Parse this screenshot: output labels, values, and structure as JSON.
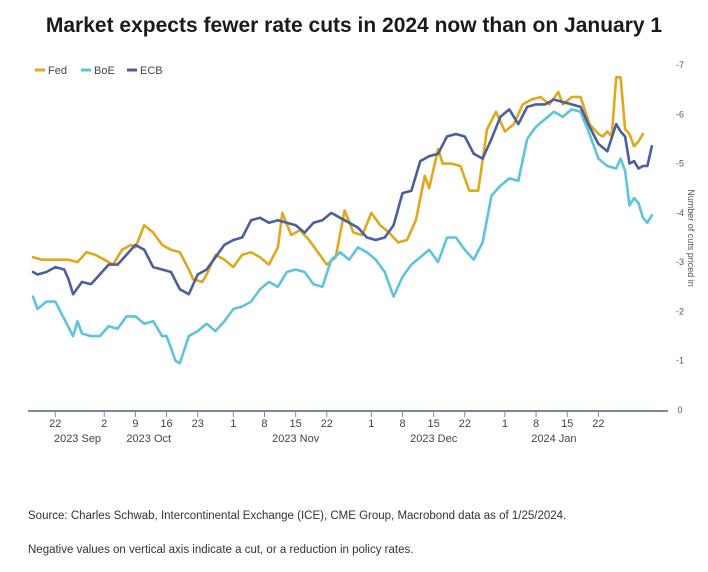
{
  "title": "Market expects fewer rate cuts in 2024 now than on January 1",
  "source_note": "Source: Charles Schwab, Intercontinental Exchange (ICE), CME Group, Macrobond data as of 1/25/2024.",
  "footnote": "Negative values on vertical axis indicate a cut, or a reduction in policy rates.",
  "chart_data": {
    "type": "line",
    "xlabel": "",
    "ylabel": "Number of cuts priced in",
    "ylim": [
      0,
      -7
    ],
    "yticks": [
      0,
      -1,
      -2,
      -3,
      -4,
      -5,
      -6,
      -7
    ],
    "ytick_labels": [
      "0",
      "-1",
      "-2",
      "-3",
      "-4",
      "-5",
      "-6",
      "-7"
    ],
    "grid": false,
    "legend": "top-left",
    "x_day_ticks": [
      "22",
      "2",
      "9",
      "16",
      "23",
      "1",
      "8",
      "15",
      "22",
      "1",
      "8",
      "15",
      "22",
      "1",
      "8",
      "15",
      "22"
    ],
    "x_month_labels": [
      "2023 Sep",
      "2023 Oct",
      "2023 Nov",
      "2023 Dec",
      "2024 Jan"
    ],
    "x_ticks_iso": [
      "2023-08-22",
      "2023-09-02",
      "2023-09-09",
      "2023-09-16",
      "2023-09-23",
      "2023-10-01",
      "2023-10-08",
      "2023-10-15",
      "2023-10-22",
      "2023-11-01",
      "2023-11-08",
      "2023-11-15",
      "2023-11-22",
      "2023-12-01",
      "2023-12-08",
      "2023-12-15",
      "2023-12-22"
    ],
    "x_month_label_dates": [
      "2023-08-27",
      "2023-09-12",
      "2023-10-15",
      "2023-11-15",
      "2023-12-12"
    ],
    "x_range": [
      "2023-08-17",
      "2023-12-30"
    ],
    "series": [
      {
        "name": "Fed",
        "color": "#e0a81c",
        "points": [
          [
            "2023-08-17",
            -3.1
          ],
          [
            "2023-08-19",
            -3.05
          ],
          [
            "2023-08-22",
            -3.05
          ],
          [
            "2023-08-25",
            -3.05
          ],
          [
            "2023-08-27",
            -3.0
          ],
          [
            "2023-08-29",
            -3.2
          ],
          [
            "2023-08-31",
            -3.15
          ],
          [
            "2023-09-02",
            -3.05
          ],
          [
            "2023-09-04",
            -2.95
          ],
          [
            "2023-09-06",
            -3.25
          ],
          [
            "2023-09-08",
            -3.35
          ],
          [
            "2023-09-09",
            -3.3
          ],
          [
            "2023-09-11",
            -3.75
          ],
          [
            "2023-09-13",
            -3.6
          ],
          [
            "2023-09-15",
            -3.35
          ],
          [
            "2023-09-17",
            -3.25
          ],
          [
            "2023-09-19",
            -3.2
          ],
          [
            "2023-09-21",
            -2.85
          ],
          [
            "2023-09-22",
            -2.65
          ],
          [
            "2023-09-24",
            -2.6
          ],
          [
            "2023-09-25",
            -2.75
          ],
          [
            "2023-09-27",
            -3.15
          ],
          [
            "2023-09-29",
            -3.05
          ],
          [
            "2023-10-01",
            -2.9
          ],
          [
            "2023-10-03",
            -3.15
          ],
          [
            "2023-10-05",
            -3.2
          ],
          [
            "2023-10-07",
            -3.1
          ],
          [
            "2023-10-09",
            -2.95
          ],
          [
            "2023-10-11",
            -3.3
          ],
          [
            "2023-10-12",
            -4.0
          ],
          [
            "2023-10-14",
            -3.55
          ],
          [
            "2023-10-16",
            -3.65
          ],
          [
            "2023-10-18",
            -3.45
          ],
          [
            "2023-10-20",
            -3.2
          ],
          [
            "2023-10-22",
            -2.95
          ],
          [
            "2023-10-24",
            -3.1
          ],
          [
            "2023-10-26",
            -4.05
          ],
          [
            "2023-10-28",
            -3.6
          ],
          [
            "2023-10-30",
            -3.55
          ],
          [
            "2023-11-01",
            -4.0
          ],
          [
            "2023-11-03",
            -3.75
          ],
          [
            "2023-11-05",
            -3.6
          ],
          [
            "2023-11-07",
            -3.4
          ],
          [
            "2023-11-09",
            -3.45
          ],
          [
            "2023-11-11",
            -3.85
          ],
          [
            "2023-11-13",
            -4.75
          ],
          [
            "2023-11-14",
            -4.5
          ],
          [
            "2023-11-16",
            -5.3
          ],
          [
            "2023-11-17",
            -5.0
          ],
          [
            "2023-11-19",
            -5.0
          ],
          [
            "2023-11-21",
            -4.95
          ],
          [
            "2023-11-23",
            -4.45
          ],
          [
            "2023-11-25",
            -4.45
          ],
          [
            "2023-11-27",
            -5.7
          ],
          [
            "2023-11-29",
            -6.05
          ],
          [
            "2023-12-01",
            -5.65
          ],
          [
            "2023-12-03",
            -5.8
          ],
          [
            "2023-12-05",
            -6.2
          ],
          [
            "2023-12-07",
            -6.3
          ],
          [
            "2023-12-09",
            -6.35
          ],
          [
            "2023-12-11",
            -6.2
          ],
          [
            "2023-12-13",
            -6.45
          ],
          [
            "2023-12-14",
            -6.2
          ],
          [
            "2023-12-16",
            -6.35
          ],
          [
            "2023-12-18",
            -6.35
          ],
          [
            "2023-12-20",
            -5.8
          ],
          [
            "2023-12-22",
            -5.6
          ],
          [
            "2023-12-23",
            -5.55
          ],
          [
            "2023-12-24",
            -5.65
          ],
          [
            "2023-12-25",
            -5.55
          ],
          [
            "2023-12-26",
            -6.75
          ],
          [
            "2023-12-27",
            -6.75
          ],
          [
            "2023-12-28",
            -5.7
          ],
          [
            "2023-12-29",
            -5.6
          ],
          [
            "2023-12-30",
            -5.35
          ],
          [
            "2023-12-31",
            -5.45
          ],
          [
            "2024-01-01",
            -5.6
          ]
        ]
      },
      {
        "name": "BoE",
        "color": "#5ec3dd",
        "points": [
          [
            "2023-08-17",
            -2.3
          ],
          [
            "2023-08-18",
            -2.05
          ],
          [
            "2023-08-20",
            -2.2
          ],
          [
            "2023-08-22",
            -2.2
          ],
          [
            "2023-08-24",
            -1.85
          ],
          [
            "2023-08-26",
            -1.5
          ],
          [
            "2023-08-27",
            -1.8
          ],
          [
            "2023-08-28",
            -1.55
          ],
          [
            "2023-08-30",
            -1.5
          ],
          [
            "2023-09-01",
            -1.5
          ],
          [
            "2023-09-03",
            -1.7
          ],
          [
            "2023-09-05",
            -1.65
          ],
          [
            "2023-09-07",
            -1.9
          ],
          [
            "2023-09-09",
            -1.9
          ],
          [
            "2023-09-11",
            -1.75
          ],
          [
            "2023-09-13",
            -1.8
          ],
          [
            "2023-09-15",
            -1.5
          ],
          [
            "2023-09-16",
            -1.5
          ],
          [
            "2023-09-18",
            -1.0
          ],
          [
            "2023-09-19",
            -0.95
          ],
          [
            "2023-09-21",
            -1.5
          ],
          [
            "2023-09-23",
            -1.6
          ],
          [
            "2023-09-25",
            -1.75
          ],
          [
            "2023-09-27",
            -1.6
          ],
          [
            "2023-09-29",
            -1.8
          ],
          [
            "2023-10-01",
            -2.05
          ],
          [
            "2023-10-03",
            -2.1
          ],
          [
            "2023-10-05",
            -2.2
          ],
          [
            "2023-10-07",
            -2.45
          ],
          [
            "2023-10-09",
            -2.6
          ],
          [
            "2023-10-11",
            -2.5
          ],
          [
            "2023-10-13",
            -2.8
          ],
          [
            "2023-10-15",
            -2.85
          ],
          [
            "2023-10-17",
            -2.8
          ],
          [
            "2023-10-19",
            -2.55
          ],
          [
            "2023-10-21",
            -2.5
          ],
          [
            "2023-10-23",
            -3.05
          ],
          [
            "2023-10-25",
            -3.2
          ],
          [
            "2023-10-27",
            -3.05
          ],
          [
            "2023-10-29",
            -3.3
          ],
          [
            "2023-10-31",
            -3.2
          ],
          [
            "2023-11-02",
            -3.05
          ],
          [
            "2023-11-04",
            -2.8
          ],
          [
            "2023-11-06",
            -2.3
          ],
          [
            "2023-11-08",
            -2.7
          ],
          [
            "2023-11-10",
            -2.95
          ],
          [
            "2023-11-12",
            -3.1
          ],
          [
            "2023-11-14",
            -3.25
          ],
          [
            "2023-11-16",
            -3.0
          ],
          [
            "2023-11-18",
            -3.5
          ],
          [
            "2023-11-20",
            -3.5
          ],
          [
            "2023-11-22",
            -3.25
          ],
          [
            "2023-11-24",
            -3.05
          ],
          [
            "2023-11-26",
            -3.4
          ],
          [
            "2023-11-28",
            -4.35
          ],
          [
            "2023-11-30",
            -4.55
          ],
          [
            "2023-12-02",
            -4.7
          ],
          [
            "2023-12-04",
            -4.65
          ],
          [
            "2023-12-06",
            -5.5
          ],
          [
            "2023-12-08",
            -5.75
          ],
          [
            "2023-12-10",
            -5.9
          ],
          [
            "2023-12-12",
            -6.05
          ],
          [
            "2023-12-14",
            -5.95
          ],
          [
            "2023-12-16",
            -6.1
          ],
          [
            "2023-12-18",
            -6.05
          ],
          [
            "2023-12-20",
            -5.6
          ],
          [
            "2023-12-22",
            -5.1
          ],
          [
            "2023-12-24",
            -4.95
          ],
          [
            "2023-12-26",
            -4.9
          ],
          [
            "2023-12-27",
            -5.1
          ],
          [
            "2023-12-28",
            -4.85
          ],
          [
            "2023-12-29",
            -4.15
          ],
          [
            "2023-12-30",
            -4.3
          ],
          [
            "2023-12-31",
            -4.2
          ],
          [
            "2024-01-01",
            -3.9
          ],
          [
            "2024-01-02",
            -3.8
          ],
          [
            "2024-01-03",
            -3.95
          ]
        ]
      },
      {
        "name": "ECB",
        "color": "#4a5f9c",
        "points": [
          [
            "2023-08-17",
            -2.8
          ],
          [
            "2023-08-18",
            -2.75
          ],
          [
            "2023-08-20",
            -2.8
          ],
          [
            "2023-08-22",
            -2.9
          ],
          [
            "2023-08-24",
            -2.85
          ],
          [
            "2023-08-25",
            -2.65
          ],
          [
            "2023-08-26",
            -2.35
          ],
          [
            "2023-08-28",
            -2.6
          ],
          [
            "2023-08-30",
            -2.55
          ],
          [
            "2023-09-01",
            -2.75
          ],
          [
            "2023-09-03",
            -2.95
          ],
          [
            "2023-09-05",
            -2.95
          ],
          [
            "2023-09-07",
            -3.15
          ],
          [
            "2023-09-09",
            -3.35
          ],
          [
            "2023-09-11",
            -3.25
          ],
          [
            "2023-09-13",
            -2.9
          ],
          [
            "2023-09-15",
            -2.85
          ],
          [
            "2023-09-17",
            -2.8
          ],
          [
            "2023-09-19",
            -2.45
          ],
          [
            "2023-09-21",
            -2.35
          ],
          [
            "2023-09-23",
            -2.75
          ],
          [
            "2023-09-25",
            -2.85
          ],
          [
            "2023-09-27",
            -3.1
          ],
          [
            "2023-09-29",
            -3.35
          ],
          [
            "2023-10-01",
            -3.45
          ],
          [
            "2023-10-03",
            -3.5
          ],
          [
            "2023-10-05",
            -3.85
          ],
          [
            "2023-10-07",
            -3.9
          ],
          [
            "2023-10-09",
            -3.8
          ],
          [
            "2023-10-11",
            -3.85
          ],
          [
            "2023-10-13",
            -3.8
          ],
          [
            "2023-10-15",
            -3.75
          ],
          [
            "2023-10-17",
            -3.6
          ],
          [
            "2023-10-19",
            -3.8
          ],
          [
            "2023-10-21",
            -3.85
          ],
          [
            "2023-10-23",
            -4.0
          ],
          [
            "2023-10-25",
            -3.9
          ],
          [
            "2023-10-27",
            -3.8
          ],
          [
            "2023-10-29",
            -3.7
          ],
          [
            "2023-10-31",
            -3.5
          ],
          [
            "2023-11-02",
            -3.45
          ],
          [
            "2023-11-04",
            -3.5
          ],
          [
            "2023-11-06",
            -3.75
          ],
          [
            "2023-11-08",
            -4.4
          ],
          [
            "2023-11-10",
            -4.45
          ],
          [
            "2023-11-12",
            -5.05
          ],
          [
            "2023-11-14",
            -5.15
          ],
          [
            "2023-11-16",
            -5.2
          ],
          [
            "2023-11-18",
            -5.55
          ],
          [
            "2023-11-20",
            -5.6
          ],
          [
            "2023-11-22",
            -5.55
          ],
          [
            "2023-11-24",
            -5.2
          ],
          [
            "2023-11-26",
            -5.1
          ],
          [
            "2023-11-28",
            -5.5
          ],
          [
            "2023-11-30",
            -5.95
          ],
          [
            "2023-12-02",
            -6.1
          ],
          [
            "2023-12-04",
            -5.8
          ],
          [
            "2023-12-06",
            -6.15
          ],
          [
            "2023-12-08",
            -6.2
          ],
          [
            "2023-12-10",
            -6.2
          ],
          [
            "2023-12-12",
            -6.3
          ],
          [
            "2023-12-14",
            -6.25
          ],
          [
            "2023-12-16",
            -6.2
          ],
          [
            "2023-12-18",
            -6.15
          ],
          [
            "2023-12-20",
            -5.75
          ],
          [
            "2023-12-22",
            -5.4
          ],
          [
            "2023-12-24",
            -5.25
          ],
          [
            "2023-12-26",
            -5.8
          ],
          [
            "2023-12-27",
            -5.65
          ],
          [
            "2023-12-28",
            -5.55
          ],
          [
            "2023-12-29",
            -5.0
          ],
          [
            "2023-12-30",
            -5.05
          ],
          [
            "2023-12-31",
            -4.9
          ],
          [
            "2024-01-01",
            -4.95
          ],
          [
            "2024-01-02",
            -4.95
          ],
          [
            "2024-01-03",
            -5.35
          ]
        ]
      }
    ]
  }
}
